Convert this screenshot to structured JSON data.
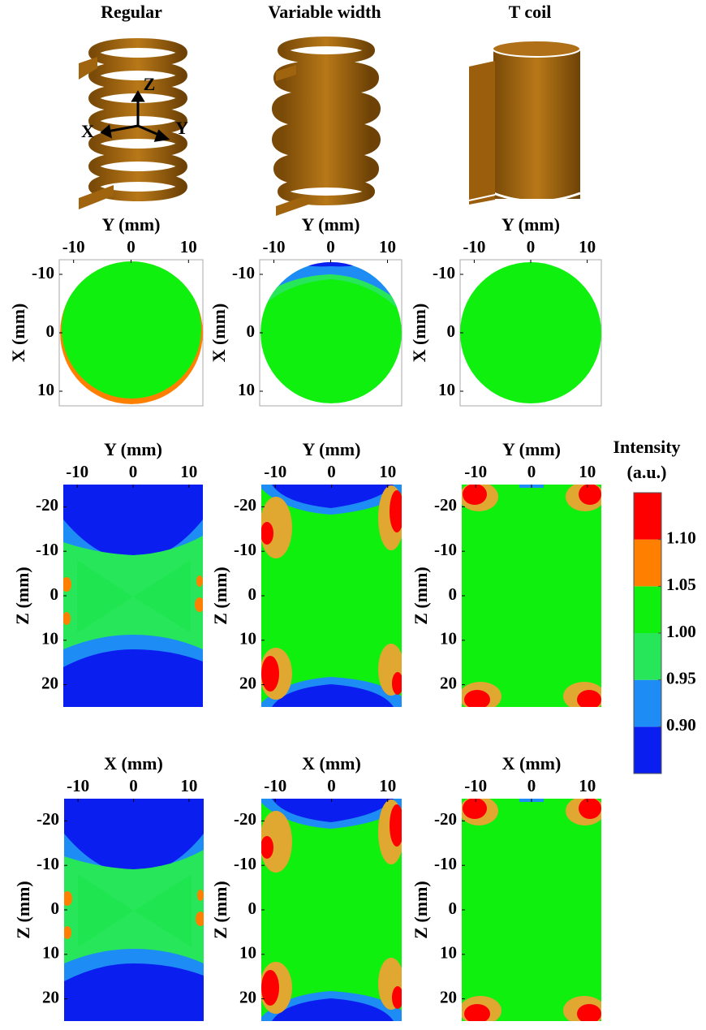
{
  "column_titles": [
    "Regular",
    "Variable width",
    "T coil"
  ],
  "coil_axes": [
    "X",
    "Y",
    "Z"
  ],
  "panels": [
    {
      "xlabel": "Y (mm)",
      "ylabel": "X (mm)",
      "xlim": [
        -12.5,
        12.5
      ],
      "ylim": [
        -12.5,
        12.5
      ],
      "xticks": [
        -10,
        0,
        10
      ],
      "yticks": [
        -10,
        0,
        10
      ]
    },
    {
      "xlabel": "Y (mm)",
      "ylabel": "X (mm)",
      "xlim": [
        -12.5,
        12.5
      ],
      "ylim": [
        -12.5,
        12.5
      ],
      "xticks": [
        -10,
        0,
        10
      ],
      "yticks": [
        -10,
        0,
        10
      ]
    },
    {
      "xlabel": "Y (mm)",
      "ylabel": "X (mm)",
      "xlim": [
        -12.5,
        12.5
      ],
      "ylim": [
        -12.5,
        12.5
      ],
      "xticks": [
        -10,
        0,
        10
      ],
      "yticks": [
        -10,
        0,
        10
      ]
    },
    {
      "xlabel": "Y (mm)",
      "ylabel": "Z (mm)",
      "xlim": [
        -12.5,
        12.5
      ],
      "ylim": [
        -25,
        25
      ],
      "xticks": [
        -10,
        0,
        10
      ],
      "yticks": [
        -20,
        -10,
        0,
        10,
        20
      ]
    },
    {
      "xlabel": "Y (mm)",
      "ylabel": "Z (mm)",
      "xlim": [
        -12.5,
        12.5
      ],
      "ylim": [
        -25,
        25
      ],
      "xticks": [
        -10,
        0,
        10
      ],
      "yticks": [
        -20,
        -10,
        0,
        10,
        20
      ]
    },
    {
      "xlabel": "Y (mm)",
      "ylabel": "Z (mm)",
      "xlim": [
        -12.5,
        12.5
      ],
      "ylim": [
        -25,
        25
      ],
      "xticks": [
        -10,
        0,
        10
      ],
      "yticks": [
        -20,
        -10,
        0,
        10,
        20
      ]
    },
    {
      "xlabel": "X (mm)",
      "ylabel": "Z (mm)",
      "xlim": [
        -12.5,
        12.5
      ],
      "ylim": [
        -25,
        25
      ],
      "xticks": [
        -10,
        0,
        10
      ],
      "yticks": [
        -20,
        -10,
        0,
        10,
        20
      ]
    },
    {
      "xlabel": "X (mm)",
      "ylabel": "Z (mm)",
      "xlim": [
        -12.5,
        12.5
      ],
      "ylim": [
        -25,
        25
      ],
      "xticks": [
        -10,
        0,
        10
      ],
      "yticks": [
        -20,
        -10,
        0,
        10,
        20
      ]
    },
    {
      "xlabel": "X (mm)",
      "ylabel": "Z (mm)",
      "xlim": [
        -12.5,
        12.5
      ],
      "ylim": [
        -25,
        25
      ],
      "xticks": [
        -10,
        0,
        10
      ],
      "yticks": [
        -20,
        -10,
        0,
        10,
        20
      ]
    }
  ],
  "colorbar": {
    "title": [
      "Intensity",
      "(a.u.)"
    ],
    "lim": [
      0.85,
      1.15
    ],
    "ticks": [
      {
        "value": 0.9,
        "label": "0.90"
      },
      0.95,
      {
        "value": 1,
        "label": "1.00"
      },
      1.05,
      {
        "value": 1.1,
        "label": "1.10"
      }
    ],
    "colors": [
      "#0a1ef0",
      "#1e8cf5",
      "#28e65a",
      "#0ff00f",
      "#ff8000",
      "#ff0000"
    ]
  }
}
